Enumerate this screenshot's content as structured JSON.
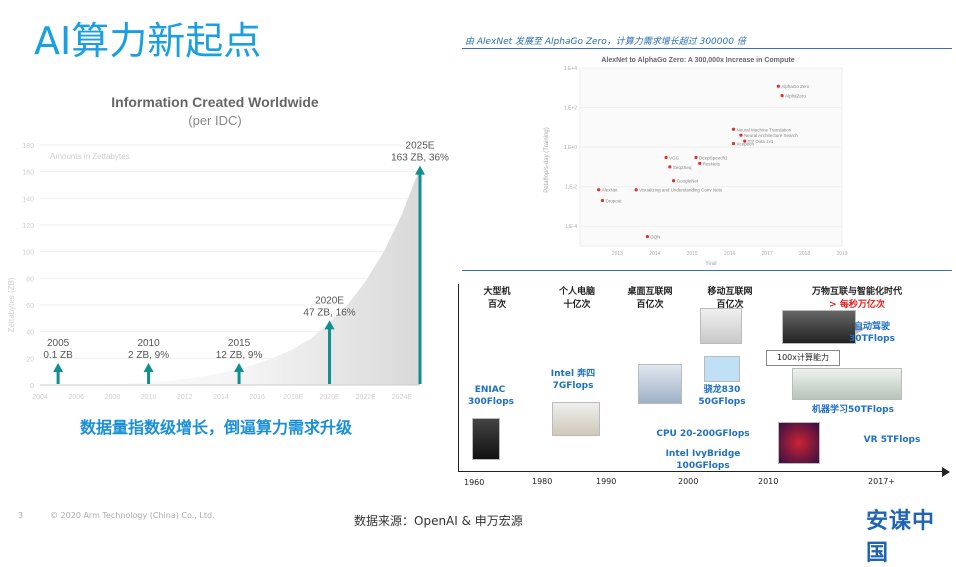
{
  "slide": {
    "title": "AI算力新起点",
    "page_number": "3",
    "copyright": "© 2020 Arm Technology (China) Co., Ltd.",
    "source": "数据来源：OpenAI & 申万宏源",
    "logo": "安谋中国"
  },
  "left": {
    "caption": "数据量指数级增长，倒逼算力需求升级"
  },
  "right_top": {
    "heading": "由 AlexNet 发展至 AlphaGo Zero，计算力需求增长超过 300000 倍"
  },
  "timeline": {
    "eras": [
      {
        "line1": "大型机",
        "line2": "百次",
        "red": false
      },
      {
        "line1": "个人电脑",
        "line2": "十亿次",
        "red": false
      },
      {
        "line1": "桌面互联网",
        "line2": "百亿次",
        "red": false
      },
      {
        "line1": "移动互联网",
        "line2": "百亿次",
        "red": false
      },
      {
        "line1": "万物互联与智能化时代",
        "line2": "> 每秒万亿次",
        "red": true
      }
    ],
    "items": [
      {
        "text": "ENIAC\n300Flops"
      },
      {
        "text": "Intel 奔四\n7GFlops"
      },
      {
        "text": "骁龙830\n50GFlops"
      },
      {
        "text": "自动驾驶\n30TFlops"
      },
      {
        "text": "100x计算能力"
      },
      {
        "text": "CPU 20-200GFlops"
      },
      {
        "text": "Intel IvyBridge 100GFlops"
      },
      {
        "text": "机器学习50TFlops"
      },
      {
        "text": "VR 5TFlops"
      }
    ],
    "years": [
      "1960",
      "1980",
      "1990",
      "2000",
      "2010",
      "2017+"
    ]
  },
  "chart_data": [
    {
      "type": "area",
      "title": "Information Created Worldwide",
      "subtitle": "(per IDC)",
      "ylabel": "Zettabytes (ZB)",
      "watermark": "Amounts in Zettabytes",
      "ylim": [
        0,
        180
      ],
      "yticks": [
        "0",
        "20",
        "40",
        "60",
        "80",
        "100",
        "120",
        "140",
        "160",
        "180"
      ],
      "categories": [
        "2004",
        "2006",
        "2008",
        "2010",
        "2012",
        "2014",
        "2016",
        "2018E",
        "2020E",
        "2022E",
        "2024E"
      ],
      "x": [
        2004,
        2005,
        2006,
        2007,
        2008,
        2009,
        2010,
        2011,
        2012,
        2013,
        2014,
        2015,
        2016,
        2017,
        2018,
        2019,
        2020,
        2021,
        2022,
        2023,
        2024,
        2025
      ],
      "values": [
        0.05,
        0.1,
        0.2,
        0.4,
        0.7,
        1.2,
        2,
        3,
        4.5,
        6.5,
        9,
        12,
        16,
        21,
        27,
        35,
        47,
        60,
        78,
        100,
        128,
        163
      ],
      "annotations": [
        {
          "x": 2005,
          "label1": "2005",
          "label2": "0.1 ZB"
        },
        {
          "x": 2010,
          "label1": "2010",
          "label2": "2 ZB, 9%"
        },
        {
          "x": 2015,
          "label1": "2015",
          "label2": "12 ZB, 9%"
        },
        {
          "x": 2020,
          "label1": "2020E",
          "label2": "47 ZB, 16%"
        },
        {
          "x": 2025,
          "label1": "2025E",
          "label2": "163 ZB, 36%"
        }
      ]
    },
    {
      "type": "scatter",
      "title": "AlexNet to AlphaGo Zero: A 300,000x Increase in Compute",
      "ylabel": "Petaflop/s-day (Training)",
      "xlabel": "Year",
      "y_scale": "log",
      "ylim": [
        1e-05,
        10000
      ],
      "yticks": [
        "1.E+4",
        "1.E+2",
        "1.E+0",
        "1.E-2",
        "1.E-4"
      ],
      "xticks": [
        "2013",
        "2014",
        "2015",
        "2016",
        "2017",
        "2018",
        "2019"
      ],
      "series": [
        {
          "points": [
            {
              "x": 2012.5,
              "y": 0.007,
              "label": "AlexNet"
            },
            {
              "x": 2012.6,
              "y": 0.002,
              "label": "Dropout"
            },
            {
              "x": 2013.5,
              "y": 0.007,
              "label": "Visualizing and Understanding Conv Nets"
            },
            {
              "x": 2013.8,
              "y": 3e-05,
              "label": "DQN"
            },
            {
              "x": 2014.3,
              "y": 0.3,
              "label": "VGG"
            },
            {
              "x": 2014.4,
              "y": 0.1,
              "label": "Seq2Seq"
            },
            {
              "x": 2014.5,
              "y": 0.02,
              "label": "GoogleNet"
            },
            {
              "x": 2015.1,
              "y": 0.3,
              "label": "DeepSpeech2"
            },
            {
              "x": 2015.2,
              "y": 0.15,
              "label": "ResNets"
            },
            {
              "x": 2016.1,
              "y": 8,
              "label": "Neural Machine Translation"
            },
            {
              "x": 2016.3,
              "y": 4,
              "label": "Neural Architecture Search"
            },
            {
              "x": 2016.4,
              "y": 2,
              "label": "TI7 Dota 1v1"
            },
            {
              "x": 2016.1,
              "y": 1.5,
              "label": "Xception"
            },
            {
              "x": 2017.3,
              "y": 1200,
              "label": "AlphaGo Zero"
            },
            {
              "x": 2017.4,
              "y": 400,
              "label": "AlphaZero"
            }
          ]
        }
      ]
    }
  ]
}
